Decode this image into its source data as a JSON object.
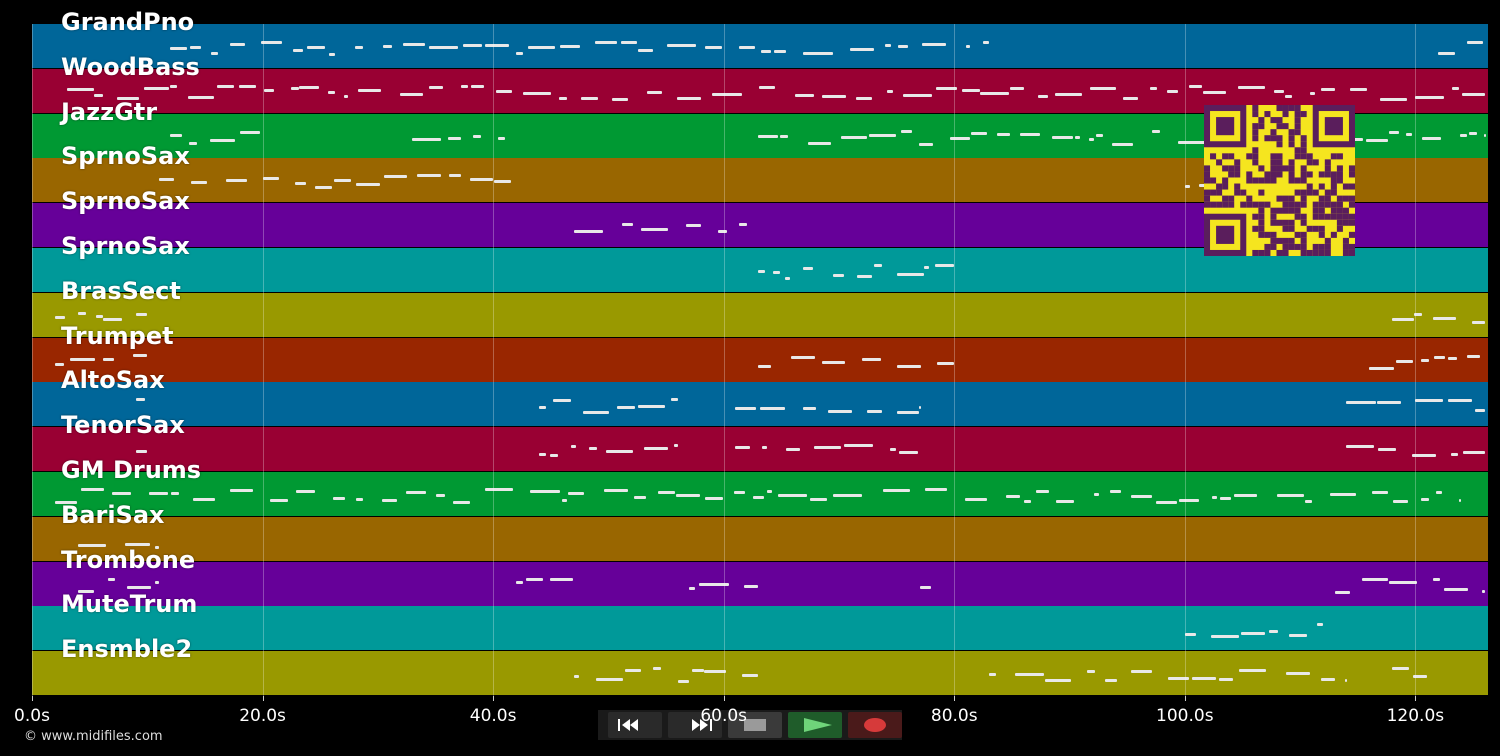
{
  "tracks": [
    {
      "name": "GrandPno",
      "color": "#006699"
    },
    {
      "name": "WoodBass",
      "color": "#990033"
    },
    {
      "name": "JazzGtr",
      "color": "#009933"
    },
    {
      "name": "SprnoSax",
      "color": "#996600"
    },
    {
      "name": "SprnoSax",
      "color": "#660099"
    },
    {
      "name": "SprnoSax",
      "color": "#009999"
    },
    {
      "name": "BrasSect",
      "color": "#999900"
    },
    {
      "name": "Trumpet",
      "color": "#992600"
    },
    {
      "name": "AltoSax",
      "color": "#006699"
    },
    {
      "name": "TenorSax",
      "color": "#990033"
    },
    {
      "name": "GM Drums",
      "color": "#009933"
    },
    {
      "name": "BariSax",
      "color": "#996600"
    },
    {
      "name": "Trombone",
      "color": "#660099"
    },
    {
      "name": "MuteTrum",
      "color": "#009999"
    },
    {
      "name": "Ensmble2",
      "color": "#999900"
    }
  ],
  "time_axis": {
    "labels": [
      "0.0s",
      "20.0s",
      "40.0s",
      "60.0s",
      "80.0s",
      "100.0s",
      "120.0s"
    ],
    "max_seconds": 126.3
  },
  "transport": {
    "buttons": [
      {
        "name": "rewind-button",
        "icon": "rewind-icon",
        "bg": "#2a2a2a"
      },
      {
        "name": "fast-forward-button",
        "icon": "fast-forward-icon",
        "bg": "#2a2a2a"
      },
      {
        "name": "stop-button",
        "icon": "stop-icon",
        "bg": "#3a3a3a"
      },
      {
        "name": "play-button",
        "icon": "play-icon",
        "bg": "#1f5c2a"
      },
      {
        "name": "record-button",
        "icon": "record-icon",
        "bg": "#4a1a1a"
      }
    ]
  },
  "copyright": "© www.midifiles.com",
  "qr_icon": "qr-code-icon"
}
